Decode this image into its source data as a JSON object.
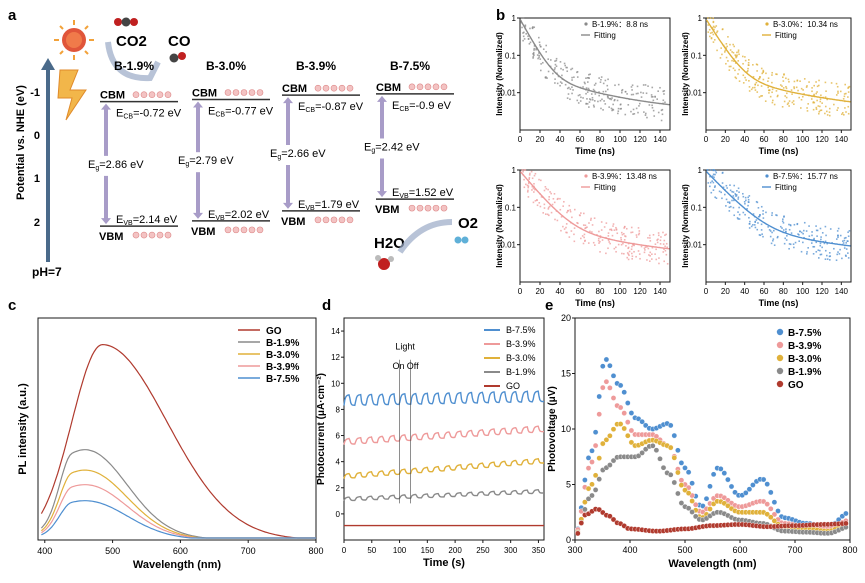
{
  "panel_letters": [
    "a",
    "b",
    "c",
    "d",
    "e"
  ],
  "colors": {
    "GO": "#b03a2e",
    "B-1.9%": "#8a8a8a",
    "B-3.0%": "#e0b13a",
    "B-3.9%": "#ee9a9a",
    "B-7.5%": "#4f8fd0",
    "axis": "#1a1a1a",
    "potential_arrow": "#4a6a8a"
  },
  "panel_a": {
    "ylabel": "Potential vs. NHE (eV)",
    "ticks": [
      "-1",
      "0",
      "1",
      "2"
    ],
    "ph_label": "pH=7",
    "co2": "CO2",
    "co": "CO",
    "h2o": "H2O",
    "o2": "O2",
    "materials": [
      {
        "name": "B-1.9%",
        "ecb": "E",
        "ecb_sub": "CB",
        "ecb_val": "=-0.72 eV",
        "eg": "E",
        "eg_sub": "g",
        "eg_val": "=2.86 eV",
        "evb": "E",
        "evb_sub": "VB",
        "evb_val": "=2.14 eV",
        "cbm": "CBM",
        "vbm": "VBM"
      },
      {
        "name": "B-3.0%",
        "ecb": "E",
        "ecb_sub": "CB",
        "ecb_val": "=-0.77 eV",
        "eg": "E",
        "eg_sub": "g",
        "eg_val": "=2.79 eV",
        "evb": "E",
        "evb_sub": "VB",
        "evb_val": "=2.02 eV",
        "cbm": "CBM",
        "vbm": "VBM"
      },
      {
        "name": "B-3.9%",
        "ecb": "E",
        "ecb_sub": "CB",
        "ecb_val": "=-0.87 eV",
        "eg": "E",
        "eg_sub": "g",
        "eg_val": "=2.66 eV",
        "evb": "E",
        "evb_sub": "VB",
        "evb_val": "=1.79 eV",
        "cbm": "CBM",
        "vbm": "VBM"
      },
      {
        "name": "B-7.5%",
        "ecb": "E",
        "ecb_sub": "CB",
        "ecb_val": "=-0.9 eV",
        "eg": "E",
        "eg_sub": "g",
        "eg_val": "=2.42 eV",
        "evb": "E",
        "evb_sub": "VB",
        "evb_val": "=1.52 eV",
        "cbm": "CBM",
        "vbm": "VBM"
      }
    ]
  },
  "chart_data": [
    {
      "id": "b1",
      "type": "scatter",
      "xlabel": "Time (ns)",
      "ylabel": "Intensity (Normalized)",
      "xlim": [
        0,
        150
      ],
      "ylim": [
        0.001,
        1
      ],
      "yscale": "log",
      "xticks": [
        "0",
        "20",
        "40",
        "60",
        "80",
        "100",
        "120",
        "140"
      ],
      "yticks": [
        "1",
        "0.1",
        "0.01"
      ],
      "legend": [
        {
          "name": "B-1.9%",
          "value": "8.8 ns"
        },
        {
          "name": "Fitting"
        }
      ],
      "series": [
        {
          "name": "B-1.9%",
          "tau": 8.8
        }
      ]
    },
    {
      "id": "b2",
      "type": "scatter",
      "xlabel": "Time (ns)",
      "ylabel": "Intensity (Normalized)",
      "xlim": [
        0,
        150
      ],
      "ylim": [
        0.001,
        1
      ],
      "yscale": "log",
      "xticks": [
        "0",
        "20",
        "40",
        "60",
        "80",
        "100",
        "120",
        "140"
      ],
      "yticks": [
        "1",
        "0.1",
        "0.01"
      ],
      "legend": [
        {
          "name": "B-3.0%",
          "value": "10.34 ns"
        },
        {
          "name": "Fitting"
        }
      ],
      "series": [
        {
          "name": "B-3.0%",
          "tau": 10.34
        }
      ]
    },
    {
      "id": "b3",
      "type": "scatter",
      "xlabel": "Time (ns)",
      "ylabel": "Intensity (Normalized)",
      "xlim": [
        0,
        150
      ],
      "ylim": [
        0.001,
        1
      ],
      "yscale": "log",
      "xticks": [
        "0",
        "20",
        "40",
        "60",
        "80",
        "100",
        "120",
        "140"
      ],
      "yticks": [
        "1",
        "0.1",
        "0.01"
      ],
      "legend": [
        {
          "name": "B-3.9%",
          "value": "13.48 ns"
        },
        {
          "name": "Fitting"
        }
      ],
      "series": [
        {
          "name": "B-3.9%",
          "tau": 13.48
        }
      ]
    },
    {
      "id": "b4",
      "type": "scatter",
      "xlabel": "Time (ns)",
      "ylabel": "Intensity (Normalized)",
      "xlim": [
        0,
        150
      ],
      "ylim": [
        0.001,
        1
      ],
      "yscale": "log",
      "xticks": [
        "0",
        "20",
        "40",
        "60",
        "80",
        "100",
        "120",
        "140"
      ],
      "yticks": [
        "1",
        "0.1",
        "0.01"
      ],
      "legend": [
        {
          "name": "B-7.5%",
          "value": "15.77 ns"
        },
        {
          "name": "Fitting"
        }
      ],
      "series": [
        {
          "name": "B-7.5%",
          "tau": 15.77
        }
      ]
    },
    {
      "id": "c",
      "type": "line",
      "xlabel": "Wavelength (nm)",
      "ylabel": "PL intensity (a.u.)",
      "xlim": [
        390,
        800
      ],
      "xticks": [
        "400",
        "500",
        "600",
        "700",
        "800"
      ],
      "series": [
        {
          "name": "GO",
          "peak_x": 485,
          "peak": 1.0
        },
        {
          "name": "B-1.9%",
          "peak_x": 440,
          "peak": 0.31
        },
        {
          "name": "B-3.0%",
          "peak_x": 440,
          "peak": 0.24
        },
        {
          "name": "B-3.9%",
          "peak_x": 440,
          "peak": 0.19
        },
        {
          "name": "B-7.5%",
          "peak_x": 440,
          "peak": 0.135
        }
      ]
    },
    {
      "id": "d",
      "type": "line",
      "xlabel": "Time (s)",
      "ylabel": "Photocurrent (μA·cm⁻²)",
      "xlim": [
        0,
        360
      ],
      "ylim": [
        -2,
        15
      ],
      "xticks": [
        "0",
        "50",
        "100",
        "150",
        "200",
        "250",
        "300",
        "350"
      ],
      "yticks": [
        "0",
        "2",
        "4",
        "6",
        "8",
        "10",
        "12",
        "14"
      ],
      "annotation": {
        "title": "Light",
        "on": "On",
        "off": "Off",
        "on_x": 100,
        "off_x": 120
      },
      "series": [
        {
          "name": "B-7.5%",
          "start": 8.3,
          "end": 8.6,
          "amp": 0.9
        },
        {
          "name": "B-3.9%",
          "start": 5.3,
          "end": 6.3,
          "amp": 0.5
        },
        {
          "name": "B-3.0%",
          "start": 2.7,
          "end": 3.9,
          "amp": 0.4
        },
        {
          "name": "B-1.9%",
          "start": 1.0,
          "end": 1.6,
          "amp": 0.3
        },
        {
          "name": "GO",
          "start": -0.9,
          "end": -0.9,
          "amp": 0
        }
      ]
    },
    {
      "id": "e",
      "type": "scatter",
      "xlabel": "Wavelength (nm)",
      "ylabel": "Photovoltage (μV)",
      "xlim": [
        300,
        800
      ],
      "ylim": [
        0,
        20
      ],
      "xticks": [
        "300",
        "400",
        "500",
        "600",
        "700",
        "800"
      ],
      "yticks": [
        "0",
        "5",
        "10",
        "15",
        "20"
      ],
      "series": [
        {
          "name": "B-7.5%",
          "x": [
            300,
            330,
            355,
            380,
            410,
            440,
            470,
            500,
            530,
            560,
            600,
            640,
            680,
            720,
            760,
            800
          ],
          "y": [
            0.5,
            8,
            16.3,
            14,
            11,
            10,
            10.5,
            6.5,
            3,
            6.5,
            4,
            5.5,
            2,
            1.5,
            1.2,
            2.5
          ]
        },
        {
          "name": "B-3.9%",
          "x": [
            300,
            330,
            355,
            380,
            410,
            440,
            470,
            500,
            530,
            560,
            600,
            640,
            680,
            720,
            760,
            800
          ],
          "y": [
            0.5,
            7,
            14.3,
            12,
            9.5,
            9.5,
            8.5,
            5,
            2.5,
            4,
            3,
            3.5,
            1.5,
            1.2,
            1,
            1.8
          ]
        },
        {
          "name": "B-3.0%",
          "x": [
            300,
            330,
            355,
            380,
            410,
            440,
            470,
            500,
            530,
            560,
            600,
            640,
            680,
            720,
            760,
            800
          ],
          "y": [
            0.4,
            5,
            9,
            10.5,
            8.5,
            9,
            8.5,
            4.5,
            2,
            3.5,
            2.5,
            2.5,
            1.2,
            1,
            0.8,
            1.5
          ]
        },
        {
          "name": "B-1.9%",
          "x": [
            300,
            330,
            355,
            380,
            410,
            440,
            470,
            500,
            530,
            560,
            600,
            640,
            680,
            720,
            760,
            800
          ],
          "y": [
            0.4,
            4,
            6.5,
            7.5,
            7.5,
            8.5,
            6,
            3,
            1.8,
            2.5,
            1.8,
            1.5,
            0.8,
            0.7,
            0.6,
            1.2
          ]
        },
        {
          "name": "GO",
          "x": [
            300,
            320,
            340,
            360,
            380,
            400,
            450,
            500,
            550,
            600,
            650,
            700,
            750,
            800
          ],
          "y": [
            0.3,
            2.3,
            2.8,
            2.2,
            1.5,
            1.0,
            0.8,
            1.0,
            1.3,
            1.4,
            1.2,
            1.3,
            1.4,
            1.5
          ]
        }
      ]
    }
  ]
}
